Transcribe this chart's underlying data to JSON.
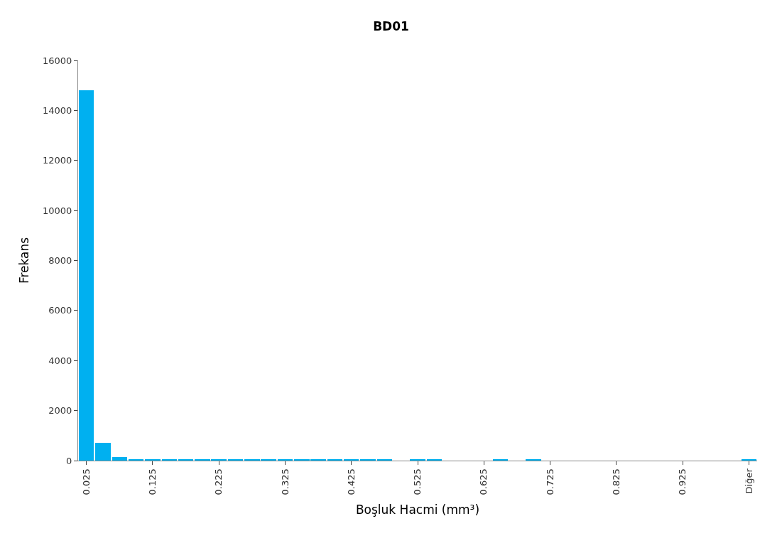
{
  "chart_data": {
    "type": "bar",
    "title": "BD01",
    "xlabel": "Boşluk Hacmi (mm³)",
    "ylabel": "Frekans",
    "categories": [
      "0.025",
      null,
      null,
      null,
      "0.125",
      null,
      null,
      null,
      "0.225",
      null,
      null,
      null,
      "0.325",
      null,
      null,
      null,
      "0.425",
      null,
      null,
      null,
      "0.525",
      null,
      null,
      null,
      "0.625",
      null,
      null,
      null,
      "0.725",
      null,
      null,
      null,
      "0.825",
      null,
      null,
      null,
      "0.925",
      null,
      null,
      null,
      "Diğer"
    ],
    "values": [
      14800,
      720,
      150,
      30,
      30,
      30,
      30,
      30,
      30,
      30,
      30,
      30,
      30,
      30,
      30,
      30,
      30,
      30,
      30,
      0,
      30,
      30,
      0,
      0,
      0,
      30,
      0,
      30,
      0,
      0,
      0,
      0,
      0,
      0,
      0,
      0,
      0,
      0,
      0,
      0,
      30
    ],
    "color": "#00b0f0",
    "ylim": [
      0,
      16000
    ],
    "yticks": [
      0,
      2000,
      4000,
      6000,
      8000,
      10000,
      12000,
      14000,
      16000
    ],
    "legend": false
  }
}
